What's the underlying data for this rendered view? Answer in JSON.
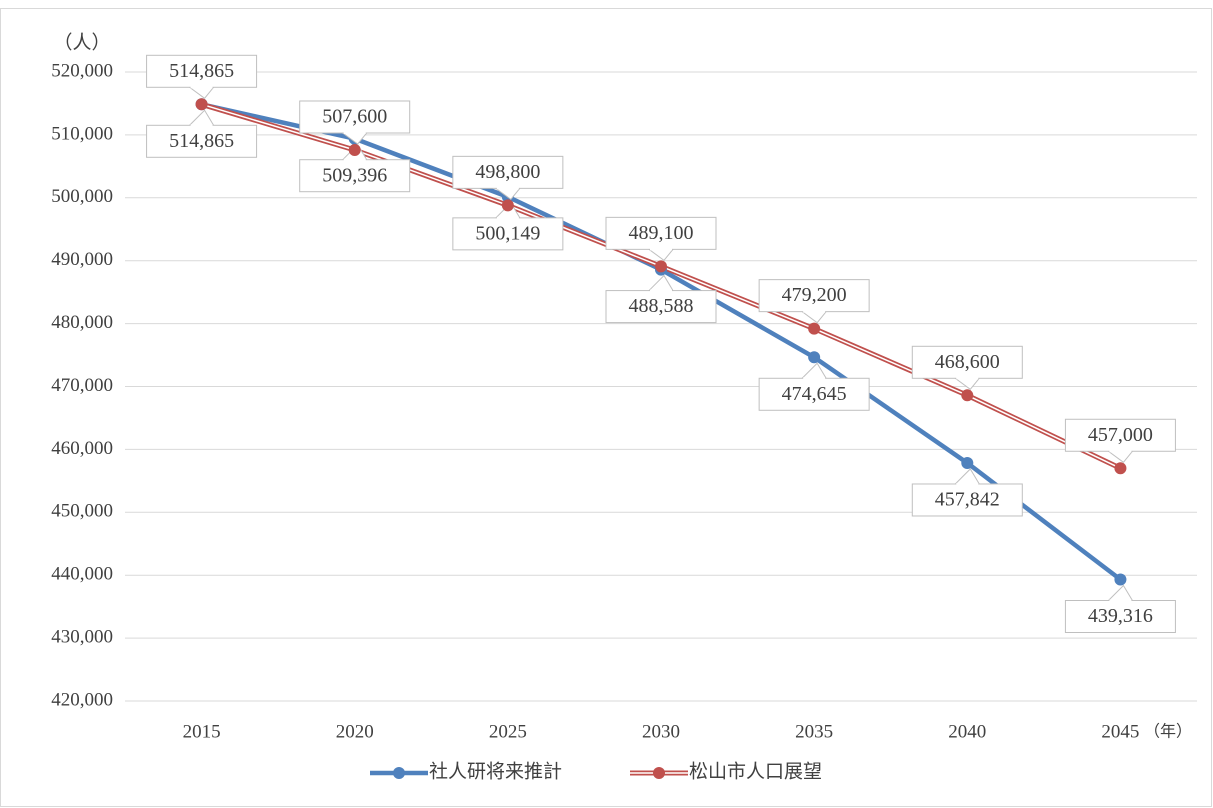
{
  "chart_data": {
    "type": "line",
    "y_axis_label": "（人）",
    "x_axis_label": "（年）",
    "categories": [
      "2015",
      "2020",
      "2025",
      "2030",
      "2035",
      "2040",
      "2045"
    ],
    "series": [
      {
        "name": "社人研将来推計",
        "color": "#4f81bd",
        "values": [
          514865,
          509396,
          500149,
          488588,
          474645,
          457842,
          439316
        ],
        "value_labels": [
          "514,865",
          "509,396",
          "500,149",
          "488,588",
          "474,645",
          "457,842",
          "439,316"
        ]
      },
      {
        "name": "松山市人口展望",
        "color": "#c0504d",
        "values": [
          514865,
          507600,
          498800,
          489100,
          479200,
          468600,
          457000
        ],
        "value_labels": [
          "514,865",
          "507,600",
          "498,800",
          "489,100",
          "479,200",
          "468,600",
          "457,000"
        ]
      }
    ],
    "ylim": [
      420000,
      520000
    ],
    "yticks": [
      {
        "value": 420000,
        "label": "420,000"
      },
      {
        "value": 430000,
        "label": "430,000"
      },
      {
        "value": 440000,
        "label": "440,000"
      },
      {
        "value": 450000,
        "label": "450,000"
      },
      {
        "value": 460000,
        "label": "460,000"
      },
      {
        "value": 470000,
        "label": "470,000"
      },
      {
        "value": 480000,
        "label": "480,000"
      },
      {
        "value": 490000,
        "label": "490,000"
      },
      {
        "value": 500000,
        "label": "500,000"
      },
      {
        "value": 510000,
        "label": "510,000"
      },
      {
        "value": 520000,
        "label": "520,000"
      }
    ],
    "grid": true,
    "legend": "bottom"
  }
}
